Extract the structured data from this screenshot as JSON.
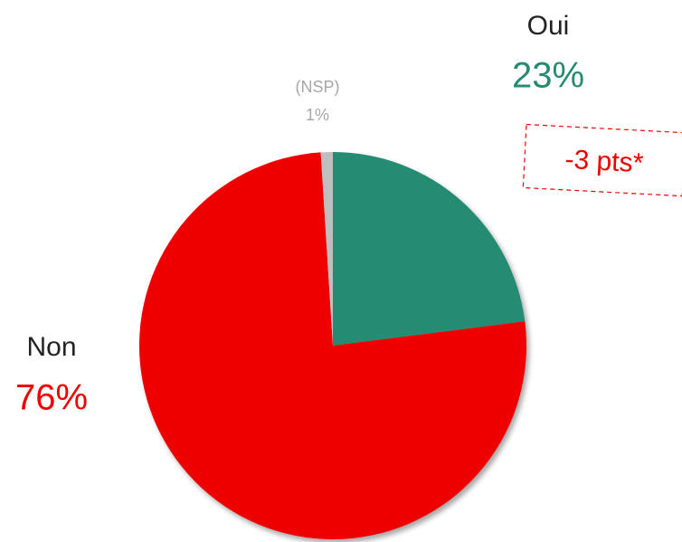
{
  "chart_data": {
    "type": "pie",
    "categories": [
      "Oui",
      "Non",
      "(NSP)"
    ],
    "values": [
      23,
      76,
      1
    ],
    "value_labels": [
      "23%",
      "76%",
      "1%"
    ],
    "colors": [
      "#268b73",
      "#ee0000",
      "#bfbfbf"
    ],
    "annotation": "-3 pts*"
  }
}
